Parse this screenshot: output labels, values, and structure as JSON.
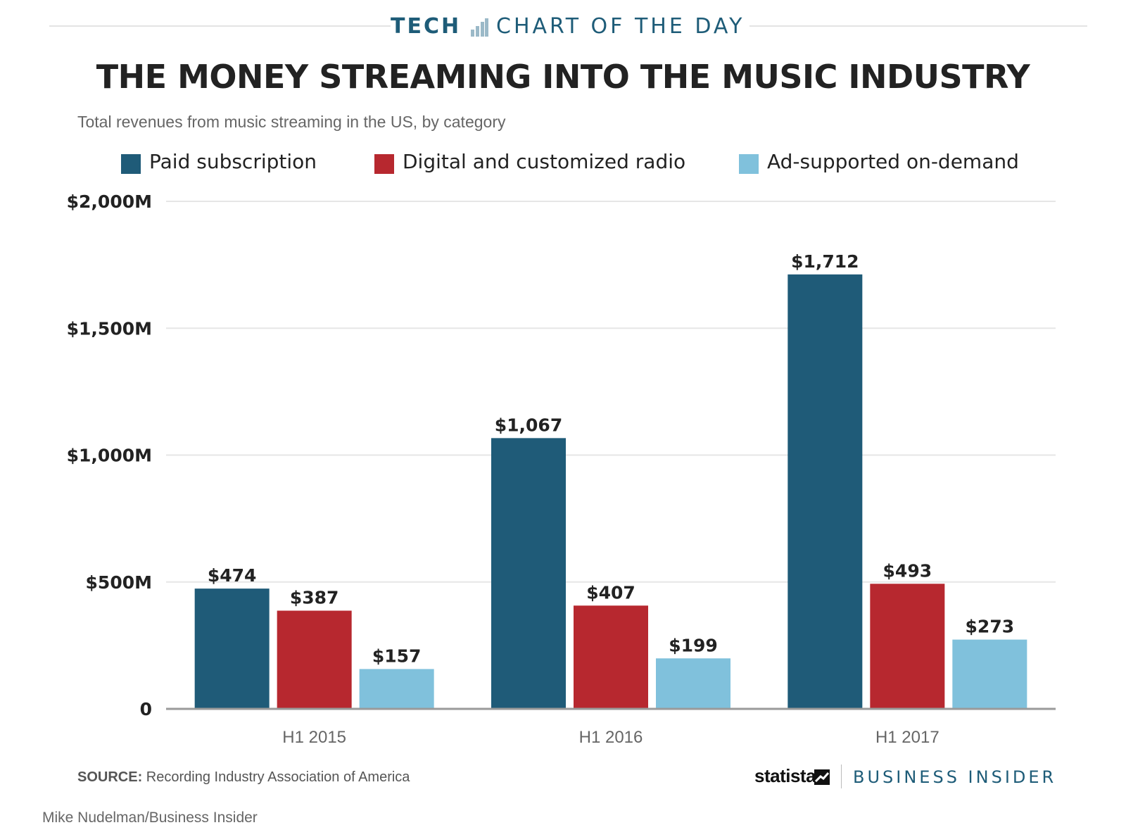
{
  "header": {
    "tech_label": "TECH",
    "section_label": "CHART OF THE DAY"
  },
  "chart_data": {
    "type": "bar",
    "title": "THE MONEY STREAMING INTO THE MUSIC INDUSTRY",
    "subtitle": "Total revenues from music streaming in the US, by category",
    "categories": [
      "H1 2015",
      "H1 2016",
      "H1 2017"
    ],
    "series": [
      {
        "name": "Paid subscription",
        "color": "#1f5b78",
        "values": [
          474,
          1067,
          1712
        ],
        "labels": [
          "$474",
          "$1,067",
          "$1,712"
        ]
      },
      {
        "name": "Digital and customized radio",
        "color": "#b7282f",
        "values": [
          387,
          407,
          493
        ],
        "labels": [
          "$387",
          "$407",
          "$493"
        ]
      },
      {
        "name": "Ad-supported on-demand",
        "color": "#80c1dc",
        "values": [
          157,
          199,
          273
        ],
        "labels": [
          "$157",
          "$199",
          "$273"
        ]
      }
    ],
    "ylim": [
      0,
      2000
    ],
    "yticks": [
      0,
      500,
      1000,
      1500,
      2000
    ],
    "ytick_labels": [
      "0",
      "$500M",
      "$1,000M",
      "$1,500M",
      "$2,000M"
    ],
    "xlabel": "",
    "ylabel": "",
    "grid": true,
    "legend_position": "top"
  },
  "footer": {
    "source_label": "SOURCE:",
    "source_text": "Recording Industry Association of America",
    "statista_logo": "statista",
    "bi_logo": "BUSINESS INSIDER",
    "credit": "Mike Nudelman/Business Insider"
  }
}
